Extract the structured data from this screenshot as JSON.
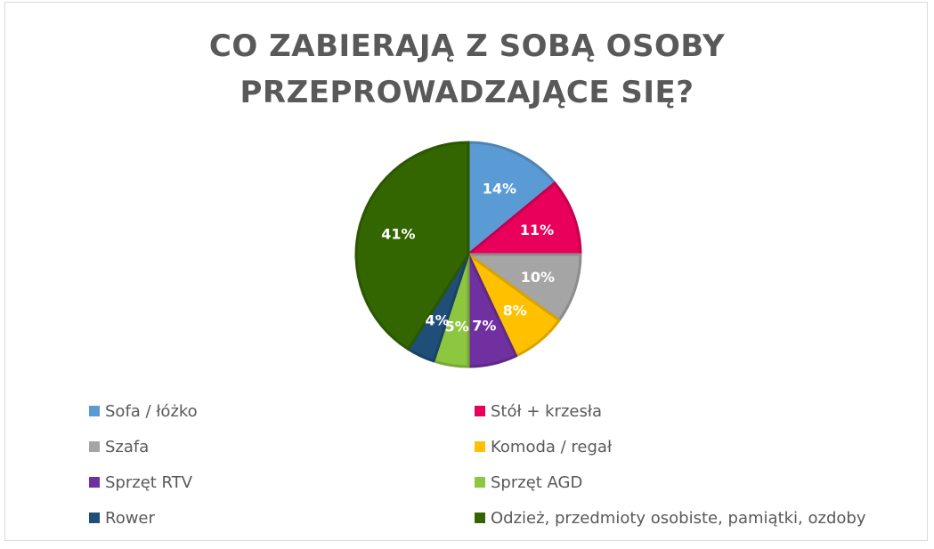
{
  "chart_data": {
    "type": "pie",
    "title": "CO ZABIERAJĄ Z SOBĄ OSOBY PRZEPROWADZAJĄCE SIĘ?",
    "title_lines": [
      "CO ZABIERAJĄ Z SOBĄ OSOBY",
      "PRZEPROWADZAJĄCE SIĘ?"
    ],
    "legend_position": "bottom",
    "unit": "%",
    "slices": [
      {
        "label": "Sofa / łóżko",
        "value": 14,
        "data_label": "14%",
        "color": "#5b9bd5"
      },
      {
        "label": "Stół + krzesła",
        "value": 11,
        "data_label": "11%",
        "color": "#e8005a"
      },
      {
        "label": "Szafa",
        "value": 10,
        "data_label": "10%",
        "color": "#a5a5a5"
      },
      {
        "label": "Komoda / regał",
        "value": 8,
        "data_label": "8%",
        "color": "#ffc000"
      },
      {
        "label": "Sprzęt RTV",
        "value": 7,
        "data_label": "7%",
        "color": "#7030a0"
      },
      {
        "label": "Sprzęt AGD",
        "value": 5,
        "data_label": "5%",
        "color": "#8dc63f"
      },
      {
        "label": "Rower",
        "value": 4,
        "data_label": "4%",
        "color": "#1f4e79"
      },
      {
        "label": "Odzież, przedmioty osobiste, pamiątki, ozdoby",
        "value": 41,
        "data_label": "41%",
        "color": "#336600"
      }
    ]
  }
}
